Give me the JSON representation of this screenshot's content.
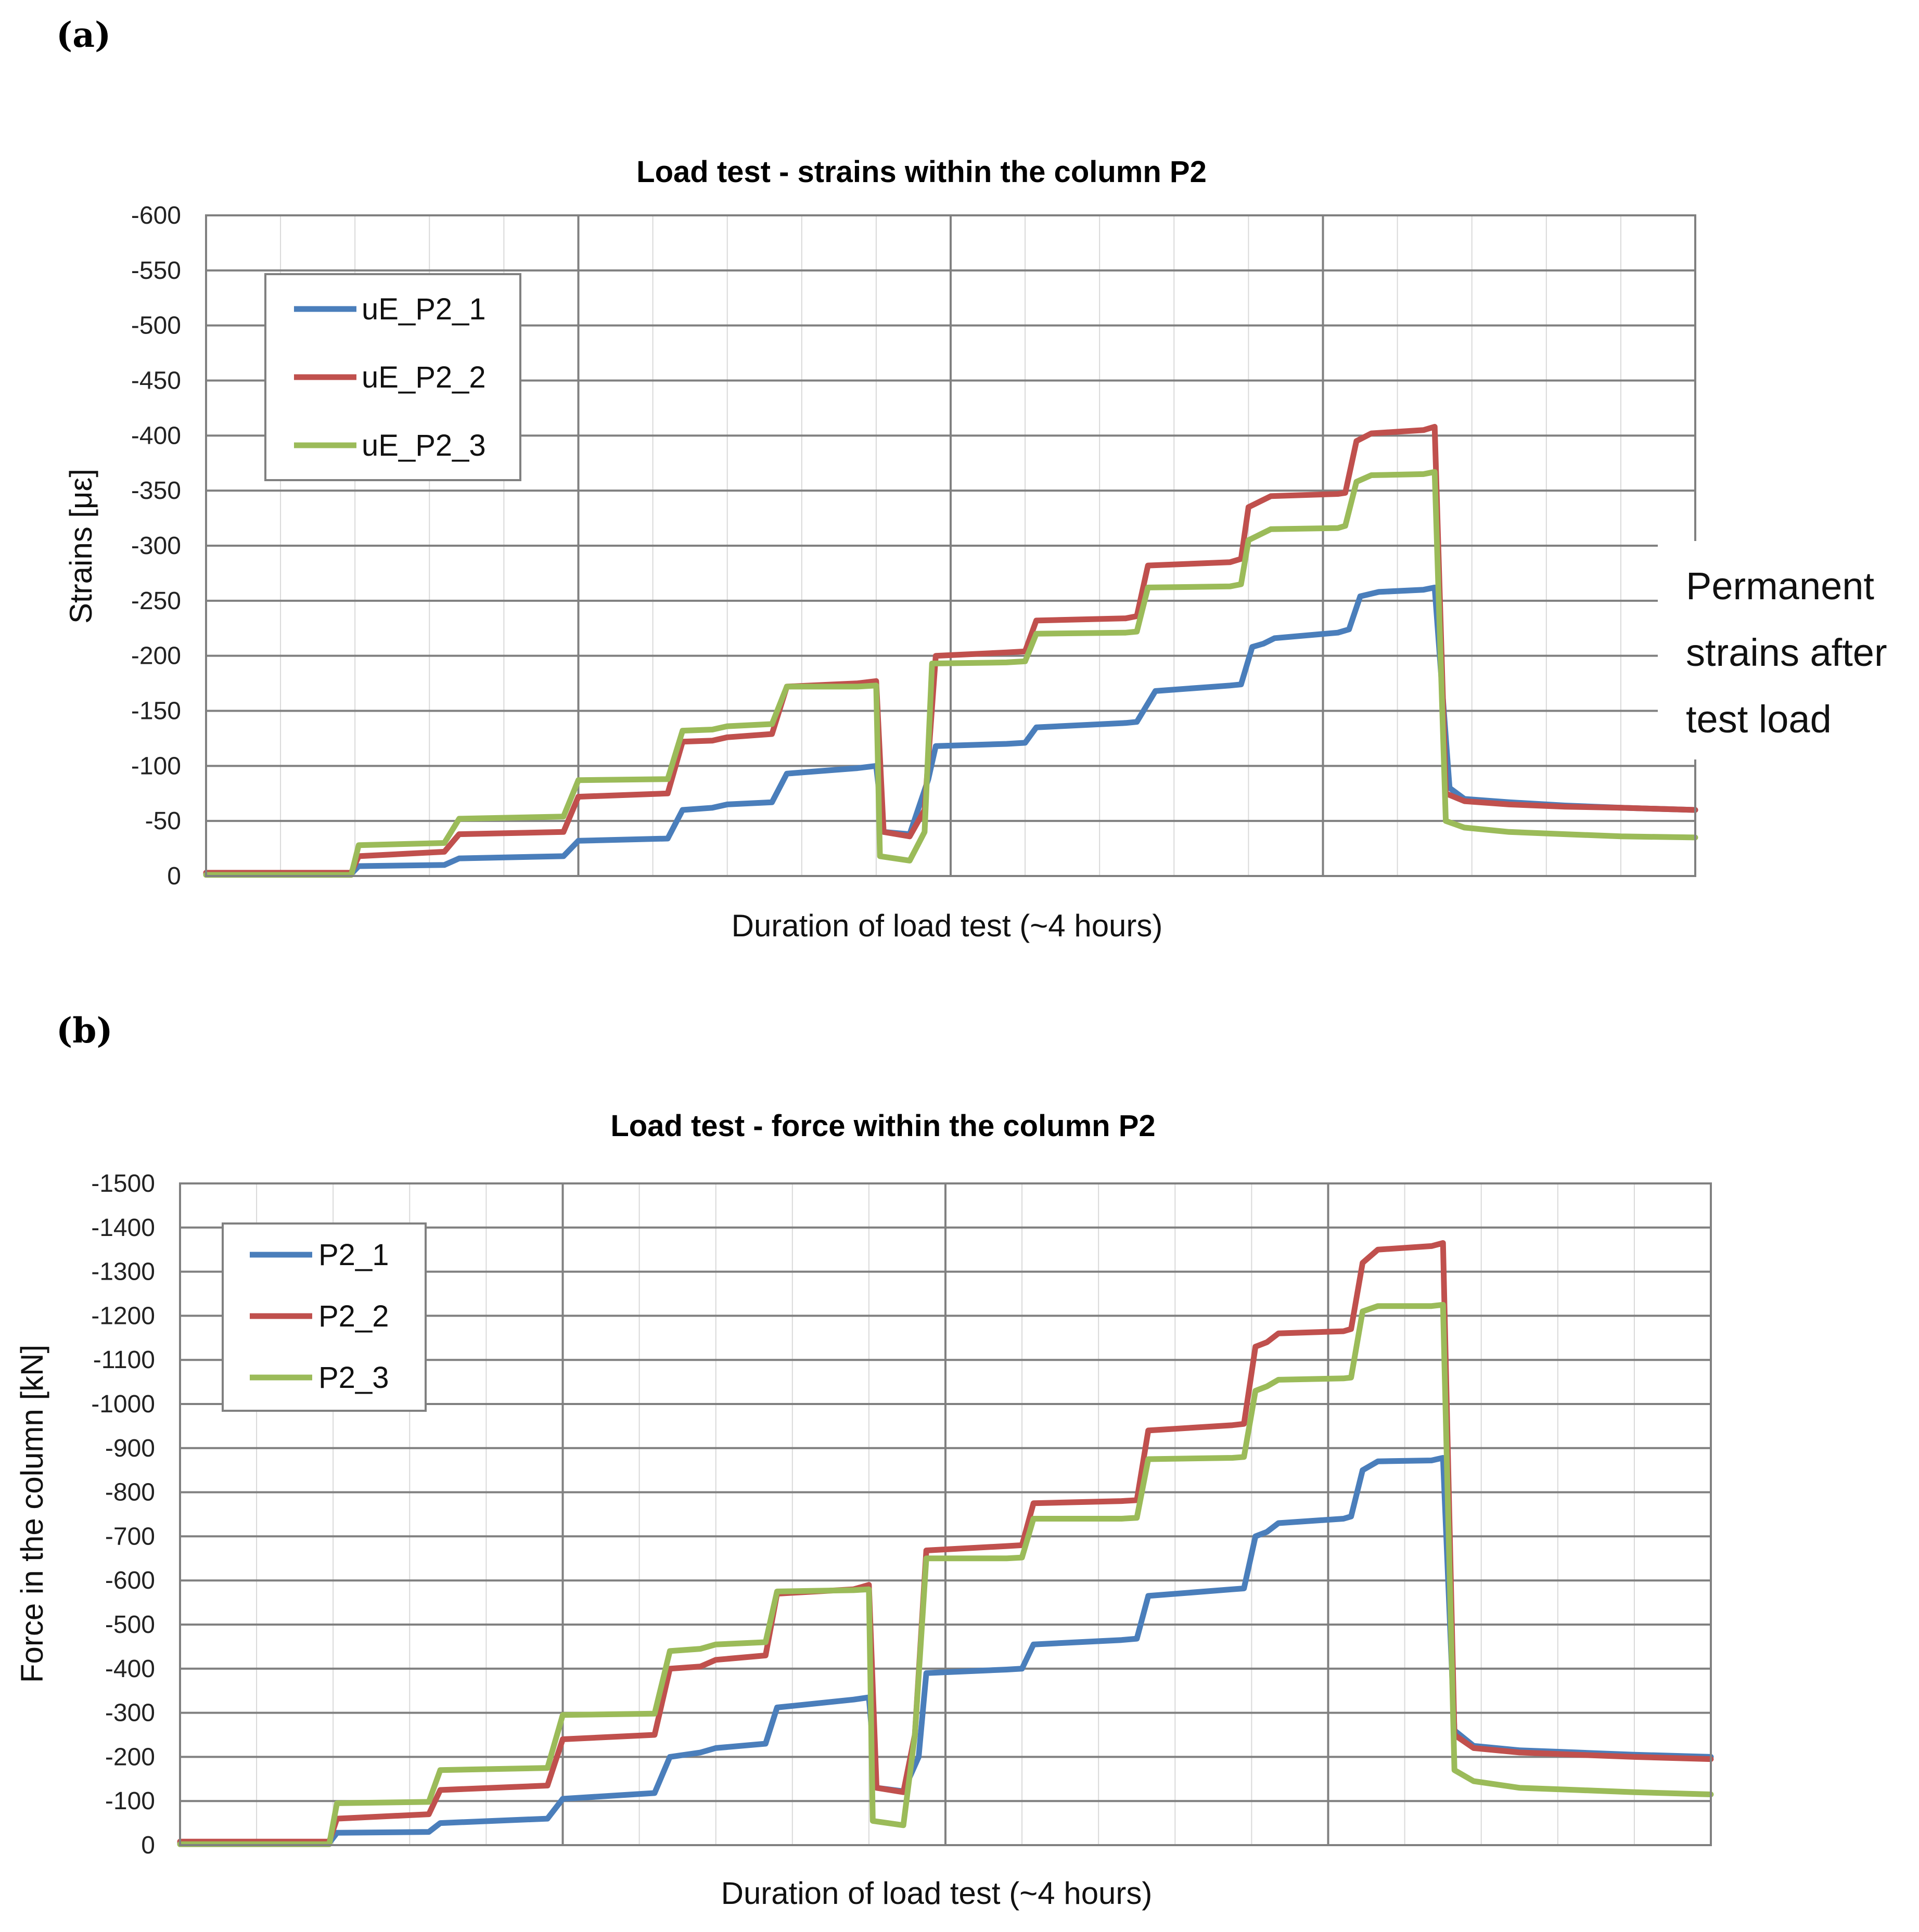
{
  "panels": [
    {
      "label": "(a)"
    },
    {
      "label": "(b)"
    }
  ],
  "annotation": {
    "lines": [
      "Permanent",
      "strains after",
      "test load"
    ]
  },
  "colors": {
    "series_blue": "#4a7ebb",
    "series_red": "#c0504d",
    "series_green": "#9bbb59",
    "grid_major": "#808080",
    "grid_minor": "#d9d9d9"
  },
  "chart_data": [
    {
      "type": "line",
      "title": "Load test - strains within the column  P2",
      "xlabel": "Duration of load test (~4 hours)",
      "ylabel": "Strains [με]",
      "ylim": [
        0,
        -600
      ],
      "y_axis_inverted": true,
      "y_ticks": [
        "-600",
        "-550",
        "-500",
        "-450",
        "-400",
        "-350",
        "-300",
        "-250",
        "-200",
        "-150",
        "-100",
        "-50",
        "0"
      ],
      "x_ticks_labeled": false,
      "grid": true,
      "legend": "top-left",
      "series": [
        {
          "name": "uE_P2_1",
          "color": "#4a7ebb",
          "points": [
            [
              0,
              -2
            ],
            [
              3.9,
              -2
            ],
            [
              4.1,
              -9
            ],
            [
              6.4,
              -10
            ],
            [
              6.8,
              -16
            ],
            [
              9.6,
              -18
            ],
            [
              10,
              -32
            ],
            [
              12.4,
              -34
            ],
            [
              12.8,
              -60
            ],
            [
              13.6,
              -62
            ],
            [
              14,
              -65
            ],
            [
              15.2,
              -67
            ],
            [
              15.6,
              -93
            ],
            [
              17.5,
              -98
            ],
            [
              18,
              -100
            ],
            [
              18.2,
              -40
            ],
            [
              18.9,
              -38
            ],
            [
              19.4,
              -88
            ],
            [
              19.6,
              -118
            ],
            [
              21.5,
              -120
            ],
            [
              22,
              -121
            ],
            [
              22.3,
              -135
            ],
            [
              24.7,
              -139
            ],
            [
              25,
              -140
            ],
            [
              25.5,
              -168
            ],
            [
              27.5,
              -173
            ],
            [
              27.8,
              -174
            ],
            [
              28.1,
              -208
            ],
            [
              28.4,
              -211
            ],
            [
              28.7,
              -216
            ],
            [
              30.4,
              -221
            ],
            [
              30.7,
              -224
            ],
            [
              31,
              -254
            ],
            [
              31.5,
              -258
            ],
            [
              32.7,
              -260
            ],
            [
              33,
              -262
            ],
            [
              33.4,
              -80
            ],
            [
              33.8,
              -70
            ],
            [
              35,
              -67
            ],
            [
              36.5,
              -64
            ],
            [
              38,
              -62
            ],
            [
              40,
              -60
            ]
          ]
        },
        {
          "name": "uE_P2_2",
          "color": "#c0504d",
          "points": [
            [
              0,
              -3
            ],
            [
              3.9,
              -3
            ],
            [
              4.1,
              -18
            ],
            [
              6.4,
              -22
            ],
            [
              6.8,
              -38
            ],
            [
              9.6,
              -40
            ],
            [
              10,
              -72
            ],
            [
              12.4,
              -75
            ],
            [
              12.8,
              -122
            ],
            [
              13.6,
              -123
            ],
            [
              14,
              -126
            ],
            [
              15.2,
              -129
            ],
            [
              15.6,
              -172
            ],
            [
              17.5,
              -175
            ],
            [
              18,
              -177
            ],
            [
              18.2,
              -40
            ],
            [
              18.9,
              -36
            ],
            [
              19.3,
              -60
            ],
            [
              19.6,
              -200
            ],
            [
              21.5,
              -203
            ],
            [
              22,
              -204
            ],
            [
              22.3,
              -232
            ],
            [
              24.7,
              -234
            ],
            [
              25,
              -236
            ],
            [
              25.3,
              -282
            ],
            [
              27.5,
              -285
            ],
            [
              27.8,
              -288
            ],
            [
              28,
              -335
            ],
            [
              28.3,
              -340
            ],
            [
              28.6,
              -345
            ],
            [
              30.4,
              -347
            ],
            [
              30.6,
              -348
            ],
            [
              30.9,
              -395
            ],
            [
              31.3,
              -402
            ],
            [
              32.7,
              -405
            ],
            [
              33,
              -408
            ],
            [
              33.3,
              -75
            ],
            [
              33.8,
              -68
            ],
            [
              35,
              -65
            ],
            [
              36.5,
              -63
            ],
            [
              38,
              -62
            ],
            [
              40,
              -60
            ]
          ]
        },
        {
          "name": "uE_P2_3",
          "color": "#9bbb59",
          "points": [
            [
              0,
              -1
            ],
            [
              3.9,
              -1
            ],
            [
              4.1,
              -28
            ],
            [
              6.4,
              -30
            ],
            [
              6.8,
              -52
            ],
            [
              9.6,
              -54
            ],
            [
              10,
              -87
            ],
            [
              12.4,
              -88
            ],
            [
              12.8,
              -132
            ],
            [
              13.6,
              -133
            ],
            [
              14,
              -136
            ],
            [
              15.2,
              -138
            ],
            [
              15.6,
              -172
            ],
            [
              17.5,
              -172
            ],
            [
              18,
              -173
            ],
            [
              18.1,
              -18
            ],
            [
              18.9,
              -14
            ],
            [
              19.3,
              -40
            ],
            [
              19.5,
              -193
            ],
            [
              21.5,
              -194
            ],
            [
              22,
              -195
            ],
            [
              22.3,
              -220
            ],
            [
              24.7,
              -221
            ],
            [
              25,
              -222
            ],
            [
              25.3,
              -262
            ],
            [
              27.5,
              -263
            ],
            [
              27.8,
              -265
            ],
            [
              28,
              -305
            ],
            [
              28.3,
              -310
            ],
            [
              28.6,
              -315
            ],
            [
              30.4,
              -316
            ],
            [
              30.6,
              -318
            ],
            [
              30.9,
              -358
            ],
            [
              31.3,
              -364
            ],
            [
              32.7,
              -365
            ],
            [
              33,
              -367
            ],
            [
              33.3,
              -50
            ],
            [
              33.8,
              -44
            ],
            [
              35,
              -40
            ],
            [
              36.5,
              -38
            ],
            [
              38,
              -36
            ],
            [
              40,
              -35
            ]
          ]
        }
      ]
    },
    {
      "type": "line",
      "title": "Load test - force within the column  P2",
      "xlabel": "Duration of load test (~4 hours)",
      "ylabel": "Force in the column [kN]",
      "ylim": [
        0,
        -1500
      ],
      "y_axis_inverted": true,
      "y_ticks": [
        "-1500",
        "-1400",
        "-1300",
        "-1200",
        "-1100",
        "-1000",
        "-900",
        "-800",
        "-700",
        "-600",
        "-500",
        "-400",
        "-300",
        "-200",
        "-100",
        "0"
      ],
      "x_ticks_labeled": false,
      "grid": true,
      "legend": "top-left",
      "series": [
        {
          "name": "P2_1",
          "color": "#4a7ebb",
          "points": [
            [
              0,
              -5
            ],
            [
              3.9,
              -5
            ],
            [
              4.1,
              -28
            ],
            [
              6.5,
              -30
            ],
            [
              6.8,
              -50
            ],
            [
              9.6,
              -60
            ],
            [
              10,
              -105
            ],
            [
              12.4,
              -118
            ],
            [
              12.8,
              -200
            ],
            [
              13.6,
              -210
            ],
            [
              14,
              -220
            ],
            [
              15.3,
              -230
            ],
            [
              15.6,
              -312
            ],
            [
              17.6,
              -330
            ],
            [
              18,
              -335
            ],
            [
              18.2,
              -130
            ],
            [
              18.9,
              -122
            ],
            [
              19.3,
              -200
            ],
            [
              19.5,
              -390
            ],
            [
              21.6,
              -398
            ],
            [
              22,
              -400
            ],
            [
              22.3,
              -455
            ],
            [
              24.6,
              -465
            ],
            [
              25,
              -468
            ],
            [
              25.3,
              -565
            ],
            [
              27.5,
              -580
            ],
            [
              27.8,
              -582
            ],
            [
              28.1,
              -700
            ],
            [
              28.4,
              -710
            ],
            [
              28.7,
              -730
            ],
            [
              30.4,
              -740
            ],
            [
              30.6,
              -745
            ],
            [
              30.9,
              -850
            ],
            [
              31.3,
              -870
            ],
            [
              32.7,
              -872
            ],
            [
              33,
              -878
            ],
            [
              33.3,
              -260
            ],
            [
              33.8,
              -225
            ],
            [
              35,
              -215
            ],
            [
              36.5,
              -210
            ],
            [
              38,
              -205
            ],
            [
              40,
              -200
            ]
          ]
        },
        {
          "name": "P2_2",
          "color": "#c0504d",
          "points": [
            [
              0,
              -8
            ],
            [
              3.9,
              -8
            ],
            [
              4.1,
              -60
            ],
            [
              6.5,
              -70
            ],
            [
              6.8,
              -125
            ],
            [
              9.6,
              -135
            ],
            [
              10,
              -240
            ],
            [
              12.4,
              -250
            ],
            [
              12.8,
              -400
            ],
            [
              13.6,
              -405
            ],
            [
              14,
              -420
            ],
            [
              15.3,
              -430
            ],
            [
              15.6,
              -570
            ],
            [
              17.6,
              -580
            ],
            [
              18,
              -590
            ],
            [
              18.2,
              -130
            ],
            [
              18.9,
              -120
            ],
            [
              19.2,
              -250
            ],
            [
              19.5,
              -668
            ],
            [
              21.6,
              -678
            ],
            [
              22,
              -680
            ],
            [
              22.3,
              -775
            ],
            [
              24.6,
              -780
            ],
            [
              25,
              -782
            ],
            [
              25.3,
              -940
            ],
            [
              27.5,
              -952
            ],
            [
              27.8,
              -955
            ],
            [
              28.1,
              -1130
            ],
            [
              28.4,
              -1140
            ],
            [
              28.7,
              -1160
            ],
            [
              30.4,
              -1165
            ],
            [
              30.6,
              -1170
            ],
            [
              30.9,
              -1320
            ],
            [
              31.3,
              -1350
            ],
            [
              32.7,
              -1358
            ],
            [
              33,
              -1365
            ],
            [
              33.3,
              -250
            ],
            [
              33.8,
              -220
            ],
            [
              35,
              -210
            ],
            [
              36.5,
              -205
            ],
            [
              38,
              -200
            ],
            [
              40,
              -195
            ]
          ]
        },
        {
          "name": "P2_3",
          "color": "#9bbb59",
          "points": [
            [
              0,
              -2
            ],
            [
              3.9,
              -2
            ],
            [
              4.1,
              -95
            ],
            [
              6.5,
              -98
            ],
            [
              6.8,
              -170
            ],
            [
              9.6,
              -175
            ],
            [
              10,
              -295
            ],
            [
              12.4,
              -298
            ],
            [
              12.8,
              -440
            ],
            [
              13.6,
              -445
            ],
            [
              14,
              -455
            ],
            [
              15.3,
              -460
            ],
            [
              15.6,
              -575
            ],
            [
              17.6,
              -578
            ],
            [
              18,
              -580
            ],
            [
              18.1,
              -55
            ],
            [
              18.9,
              -45
            ],
            [
              19.2,
              -250
            ],
            [
              19.5,
              -650
            ],
            [
              21.6,
              -650
            ],
            [
              22,
              -652
            ],
            [
              22.3,
              -740
            ],
            [
              24.6,
              -740
            ],
            [
              25,
              -742
            ],
            [
              25.3,
              -875
            ],
            [
              27.5,
              -878
            ],
            [
              27.8,
              -880
            ],
            [
              28.1,
              -1030
            ],
            [
              28.4,
              -1040
            ],
            [
              28.7,
              -1055
            ],
            [
              30.4,
              -1058
            ],
            [
              30.6,
              -1060
            ],
            [
              30.9,
              -1210
            ],
            [
              31.3,
              -1222
            ],
            [
              32.7,
              -1222
            ],
            [
              33,
              -1225
            ],
            [
              33.3,
              -170
            ],
            [
              33.8,
              -145
            ],
            [
              35,
              -130
            ],
            [
              36.5,
              -125
            ],
            [
              38,
              -120
            ],
            [
              40,
              -115
            ]
          ]
        }
      ]
    }
  ]
}
